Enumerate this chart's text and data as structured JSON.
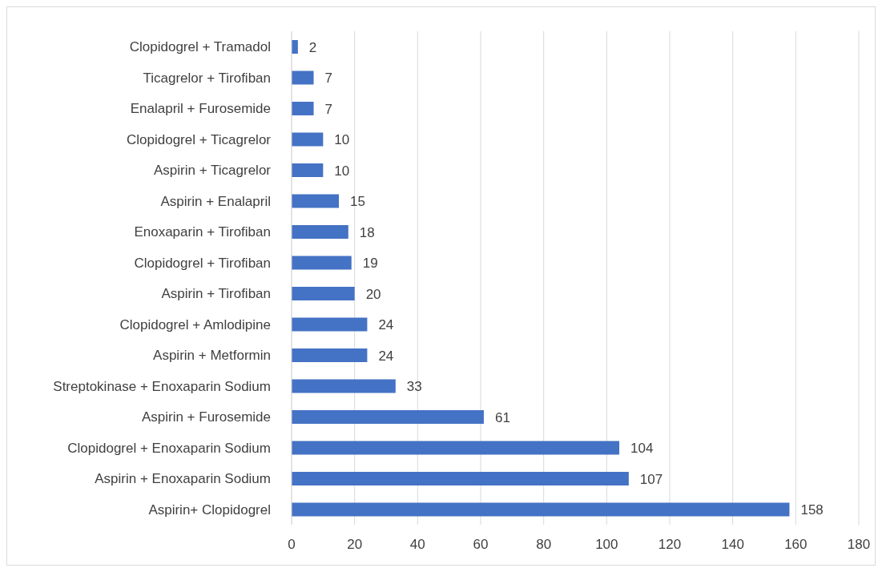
{
  "chart_data": {
    "type": "bar",
    "orientation": "horizontal",
    "categories": [
      "Clopidogrel + Tramadol",
      "Ticagrelor + Tirofiban",
      "Enalapril + Furosemide",
      "Clopidogrel + Ticagrelor",
      "Aspirin + Ticagrelor",
      "Aspirin + Enalapril",
      "Enoxaparin + Tirofiban",
      "Clopidogrel + Tirofiban",
      "Aspirin + Tirofiban",
      "Clopidogrel + Amlodipine",
      "Aspirin + Metformin",
      "Streptokinase + Enoxaparin Sodium",
      "Aspirin + Furosemide",
      "Clopidogrel + Enoxaparin Sodium",
      "Aspirin + Enoxaparin Sodium",
      "Aspirin+ Clopidogrel"
    ],
    "values": [
      2,
      7,
      7,
      10,
      10,
      15,
      18,
      19,
      20,
      24,
      24,
      33,
      61,
      104,
      107,
      158
    ],
    "color": "#4472c4",
    "xlim": [
      0,
      180
    ],
    "xticks": [
      0,
      20,
      40,
      60,
      80,
      100,
      120,
      140,
      160,
      180
    ],
    "grid": "x",
    "data_labels": true
  }
}
